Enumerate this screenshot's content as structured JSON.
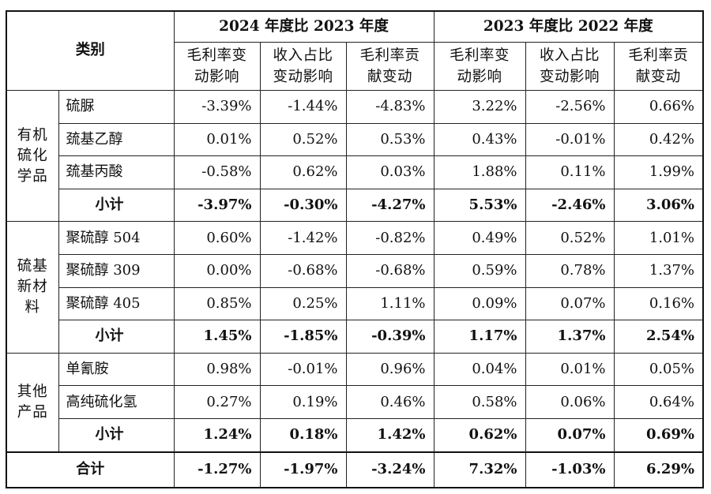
{
  "header": {
    "corner": "类别",
    "periods": [
      "2024 年度比 2023 年度",
      "2023 年度比 2022 年度"
    ],
    "columns": [
      [
        "毛利率变",
        "动影响"
      ],
      [
        "收入占比",
        "变动影响"
      ],
      [
        "毛利率贡",
        "献变动"
      ],
      [
        "毛利率变",
        "动影响"
      ],
      [
        "收入占比",
        "变动影响"
      ],
      [
        "毛利率贡",
        "献变动"
      ]
    ]
  },
  "groups": [
    {
      "label_lines": [
        "有机",
        "硫化",
        "学品"
      ],
      "rows": [
        {
          "name": "硫脲",
          "values": [
            "-3.39%",
            "-1.44%",
            "-4.83%",
            "3.22%",
            "-2.56%",
            "0.66%"
          ]
        },
        {
          "name": "巯基乙醇",
          "values": [
            "0.01%",
            "0.52%",
            "0.53%",
            "0.43%",
            "-0.01%",
            "0.42%"
          ]
        },
        {
          "name": "巯基丙酸",
          "values": [
            "-0.58%",
            "0.62%",
            "0.03%",
            "1.88%",
            "0.11%",
            "1.99%"
          ]
        }
      ],
      "subtotal": {
        "name": "小计",
        "values": [
          "-3.97%",
          "-0.30%",
          "-4.27%",
          "5.53%",
          "-2.46%",
          "3.06%"
        ]
      }
    },
    {
      "label_lines": [
        "硫基",
        "新材",
        "料"
      ],
      "rows": [
        {
          "name": "聚硫醇 504",
          "values": [
            "0.60%",
            "-1.42%",
            "-0.82%",
            "0.49%",
            "0.52%",
            "1.01%"
          ]
        },
        {
          "name": "聚硫醇 309",
          "values": [
            "0.00%",
            "-0.68%",
            "-0.68%",
            "0.59%",
            "0.78%",
            "1.37%"
          ]
        },
        {
          "name": "聚硫醇 405",
          "values": [
            "0.85%",
            "0.25%",
            "1.11%",
            "0.09%",
            "0.07%",
            "0.16%"
          ]
        }
      ],
      "subtotal": {
        "name": "小计",
        "values": [
          "1.45%",
          "-1.85%",
          "-0.39%",
          "1.17%",
          "1.37%",
          "2.54%"
        ]
      }
    },
    {
      "label_lines": [
        "其他",
        "产品"
      ],
      "rows": [
        {
          "name": "单氰胺",
          "values": [
            "0.98%",
            "-0.01%",
            "0.96%",
            "0.04%",
            "0.01%",
            "0.05%"
          ]
        },
        {
          "name": "高纯硫化氢",
          "values": [
            "0.27%",
            "0.19%",
            "0.46%",
            "0.58%",
            "0.06%",
            "0.64%"
          ]
        }
      ],
      "subtotal": {
        "name": "小计",
        "values": [
          "1.24%",
          "0.18%",
          "1.42%",
          "0.62%",
          "0.07%",
          "0.69%"
        ]
      }
    }
  ],
  "total": {
    "name": "合计",
    "values": [
      "-1.27%",
      "-1.97%",
      "-3.24%",
      "7.32%",
      "-1.03%",
      "6.29%"
    ]
  }
}
